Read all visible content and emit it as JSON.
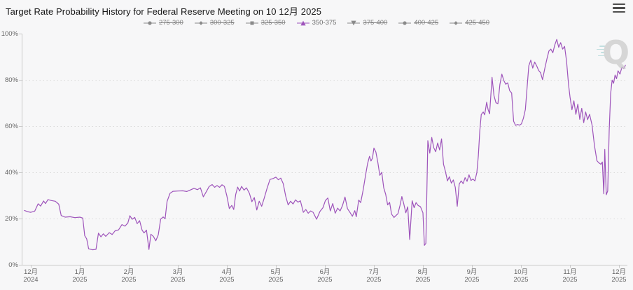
{
  "title": "Target Rate Probability History for Federal Reserve Meeting on 10 12月 2025",
  "watermark": {
    "letter": "Q"
  },
  "colors": {
    "background": "#f7f7f8",
    "accent": "#9e54bb",
    "legend_disabled": "#8a8a8a",
    "axis": "#c9c9c9",
    "grid": "#d9d9d9",
    "tick_text": "#666666",
    "title_text": "#161616"
  },
  "legend": {
    "items": [
      {
        "label": "275-300",
        "marker": "circle",
        "active": false
      },
      {
        "label": "300-325",
        "marker": "diamond",
        "active": false
      },
      {
        "label": "325-350",
        "marker": "square",
        "active": false
      },
      {
        "label": "350-375",
        "marker": "triangle-up",
        "active": true
      },
      {
        "label": "375-400",
        "marker": "triangle-down",
        "active": false
      },
      {
        "label": "400-425",
        "marker": "circle",
        "active": false
      },
      {
        "label": "425-450",
        "marker": "diamond",
        "active": false
      }
    ]
  },
  "chart_data": {
    "type": "line",
    "title": "Target Rate Probability History for Federal Reserve Meeting on 10 12月 2025",
    "xlabel": "",
    "ylabel": "",
    "ylim": [
      0,
      100
    ],
    "grid": "dotted-horizontal",
    "legend_position": "top-center",
    "y_ticks": [
      "0%",
      "20%",
      "40%",
      "60%",
      "80%",
      "100%"
    ],
    "x_ticks": [
      {
        "month": "12月",
        "year": "2024"
      },
      {
        "month": "1月",
        "year": "2025"
      },
      {
        "month": "2月",
        "year": "2025"
      },
      {
        "month": "3月",
        "year": "2025"
      },
      {
        "month": "4月",
        "year": "2025"
      },
      {
        "month": "5月",
        "year": "2025"
      },
      {
        "month": "6月",
        "year": "2025"
      },
      {
        "month": "7月",
        "year": "2025"
      },
      {
        "month": "8月",
        "year": "2025"
      },
      {
        "month": "9月",
        "year": "2025"
      },
      {
        "month": "10月",
        "year": "2025"
      },
      {
        "month": "11月",
        "year": "2025"
      },
      {
        "month": "12月",
        "year": "2025"
      }
    ],
    "hidden_series": [
      "275-300",
      "300-325",
      "325-350",
      "375-400",
      "400-425",
      "425-450"
    ],
    "series": [
      {
        "name": "350-375",
        "color": "#9e54bb",
        "unit": "%",
        "x_unit": "months-from-2024-12",
        "points": [
          [
            -0.13,
            23.5
          ],
          [
            -0.07,
            23.0
          ],
          [
            0,
            22.7
          ],
          [
            0.08,
            23.2
          ],
          [
            0.15,
            26.4
          ],
          [
            0.2,
            25.4
          ],
          [
            0.26,
            27.6
          ],
          [
            0.3,
            26.5
          ],
          [
            0.35,
            28.2
          ],
          [
            0.42,
            27.8
          ],
          [
            0.5,
            27.5
          ],
          [
            0.57,
            26.2
          ],
          [
            0.62,
            21.3
          ],
          [
            0.7,
            20.6
          ],
          [
            0.8,
            20.8
          ],
          [
            0.9,
            20.4
          ],
          [
            1.0,
            20.6
          ],
          [
            1.06,
            20.2
          ],
          [
            1.1,
            12.6
          ],
          [
            1.14,
            11.2
          ],
          [
            1.18,
            6.9
          ],
          [
            1.26,
            6.5
          ],
          [
            1.33,
            6.7
          ],
          [
            1.38,
            13.7
          ],
          [
            1.43,
            12.1
          ],
          [
            1.48,
            13.4
          ],
          [
            1.53,
            12.3
          ],
          [
            1.6,
            13.9
          ],
          [
            1.66,
            13.1
          ],
          [
            1.72,
            14.7
          ],
          [
            1.79,
            15.1
          ],
          [
            1.86,
            17.4
          ],
          [
            1.92,
            16.7
          ],
          [
            1.98,
            18.1
          ],
          [
            2.02,
            21.2
          ],
          [
            2.07,
            19.7
          ],
          [
            2.12,
            20.5
          ],
          [
            2.17,
            17.8
          ],
          [
            2.22,
            19.1
          ],
          [
            2.27,
            15.0
          ],
          [
            2.31,
            13.8
          ],
          [
            2.36,
            15.0
          ],
          [
            2.41,
            6.6
          ],
          [
            2.45,
            13.2
          ],
          [
            2.5,
            12.3
          ],
          [
            2.55,
            10.4
          ],
          [
            2.6,
            12.9
          ],
          [
            2.65,
            19.8
          ],
          [
            2.7,
            20.7
          ],
          [
            2.74,
            19.9
          ],
          [
            2.78,
            27.4
          ],
          [
            2.84,
            30.9
          ],
          [
            2.9,
            31.8
          ],
          [
            3.0,
            31.9
          ],
          [
            3.1,
            32.0
          ],
          [
            3.18,
            31.7
          ],
          [
            3.26,
            32.4
          ],
          [
            3.33,
            33.1
          ],
          [
            3.4,
            32.5
          ],
          [
            3.46,
            33.3
          ],
          [
            3.52,
            29.4
          ],
          [
            3.58,
            31.6
          ],
          [
            3.64,
            33.9
          ],
          [
            3.7,
            34.7
          ],
          [
            3.75,
            33.5
          ],
          [
            3.8,
            34.3
          ],
          [
            3.85,
            33.5
          ],
          [
            3.9,
            34.6
          ],
          [
            3.95,
            33.9
          ],
          [
            4.0,
            29.8
          ],
          [
            4.05,
            24.3
          ],
          [
            4.1,
            25.7
          ],
          [
            4.14,
            23.9
          ],
          [
            4.18,
            30.4
          ],
          [
            4.22,
            33.6
          ],
          [
            4.26,
            31.9
          ],
          [
            4.3,
            33.9
          ],
          [
            4.35,
            32.3
          ],
          [
            4.4,
            33.3
          ],
          [
            4.46,
            30.9
          ],
          [
            4.51,
            27.3
          ],
          [
            4.56,
            29.1
          ],
          [
            4.61,
            23.7
          ],
          [
            4.66,
            27.5
          ],
          [
            4.71,
            25.3
          ],
          [
            4.76,
            28.7
          ],
          [
            4.82,
            33.1
          ],
          [
            4.88,
            36.9
          ],
          [
            4.94,
            37.3
          ],
          [
            5.0,
            37.9
          ],
          [
            5.05,
            36.8
          ],
          [
            5.1,
            37.5
          ],
          [
            5.15,
            35.1
          ],
          [
            5.2,
            29.7
          ],
          [
            5.25,
            25.9
          ],
          [
            5.3,
            27.5
          ],
          [
            5.35,
            26.3
          ],
          [
            5.4,
            28.1
          ],
          [
            5.45,
            27.1
          ],
          [
            5.5,
            27.7
          ],
          [
            5.56,
            22.7
          ],
          [
            5.61,
            23.9
          ],
          [
            5.66,
            22.3
          ],
          [
            5.71,
            23.3
          ],
          [
            5.76,
            22.7
          ],
          [
            5.83,
            19.7
          ],
          [
            5.9,
            23.1
          ],
          [
            5.96,
            24.7
          ],
          [
            6.01,
            27.8
          ],
          [
            6.06,
            28.9
          ],
          [
            6.11,
            23.3
          ],
          [
            6.16,
            26.5
          ],
          [
            6.21,
            22.3
          ],
          [
            6.26,
            24.5
          ],
          [
            6.31,
            23.3
          ],
          [
            6.36,
            25.7
          ],
          [
            6.41,
            29.3
          ],
          [
            6.46,
            24.3
          ],
          [
            6.51,
            22.7
          ],
          [
            6.56,
            21.0
          ],
          [
            6.61,
            23.4
          ],
          [
            6.64,
            20.8
          ],
          [
            6.69,
            28.0
          ],
          [
            6.73,
            26.9
          ],
          [
            6.78,
            32.3
          ],
          [
            6.83,
            38.8
          ],
          [
            6.87,
            43.7
          ],
          [
            6.91,
            46.9
          ],
          [
            6.94,
            44.9
          ],
          [
            6.97,
            46.1
          ],
          [
            7.0,
            50.5
          ],
          [
            7.04,
            48.8
          ],
          [
            7.08,
            44.3
          ],
          [
            7.12,
            38.7
          ],
          [
            7.16,
            40.0
          ],
          [
            7.2,
            33.3
          ],
          [
            7.24,
            30.5
          ],
          [
            7.28,
            25.9
          ],
          [
            7.32,
            27.0
          ],
          [
            7.36,
            21.9
          ],
          [
            7.41,
            20.5
          ],
          [
            7.45,
            21.3
          ],
          [
            7.49,
            22.1
          ],
          [
            7.53,
            25.5
          ],
          [
            7.57,
            29.5
          ],
          [
            7.61,
            26.3
          ],
          [
            7.65,
            22.5
          ],
          [
            7.69,
            25.1
          ],
          [
            7.73,
            10.9
          ],
          [
            7.78,
            27.7
          ],
          [
            7.82,
            24.7
          ],
          [
            7.86,
            26.9
          ],
          [
            7.9,
            25.7
          ],
          [
            7.95,
            25.1
          ],
          [
            8.0,
            22.5
          ],
          [
            8.03,
            8.4
          ],
          [
            8.06,
            9.3
          ],
          [
            8.1,
            53.7
          ],
          [
            8.14,
            48.3
          ],
          [
            8.18,
            55.1
          ],
          [
            8.22,
            50.7
          ],
          [
            8.26,
            48.9
          ],
          [
            8.3,
            52.7
          ],
          [
            8.34,
            49.7
          ],
          [
            8.38,
            54.5
          ],
          [
            8.42,
            43.5
          ],
          [
            8.46,
            40.3
          ],
          [
            8.5,
            36.3
          ],
          [
            8.54,
            38.1
          ],
          [
            8.58,
            35.3
          ],
          [
            8.62,
            36.7
          ],
          [
            8.66,
            33.5
          ],
          [
            8.7,
            25.3
          ],
          [
            8.74,
            34.9
          ],
          [
            8.78,
            36.3
          ],
          [
            8.82,
            35.1
          ],
          [
            8.86,
            37.7
          ],
          [
            8.9,
            36.1
          ],
          [
            8.94,
            38.9
          ],
          [
            8.98,
            36.5
          ],
          [
            9.02,
            37.1
          ],
          [
            9.06,
            36.3
          ],
          [
            9.1,
            39.9
          ],
          [
            9.13,
            47.1
          ],
          [
            9.16,
            57.9
          ],
          [
            9.19,
            65.0
          ],
          [
            9.23,
            66.1
          ],
          [
            9.26,
            64.9
          ],
          [
            9.3,
            70.3
          ],
          [
            9.33,
            67.1
          ],
          [
            9.36,
            65.3
          ],
          [
            9.41,
            81.1
          ],
          [
            9.45,
            73.1
          ],
          [
            9.49,
            70.1
          ],
          [
            9.53,
            69.7
          ],
          [
            9.57,
            78.0
          ],
          [
            9.61,
            82.5
          ],
          [
            9.65,
            79.7
          ],
          [
            9.69,
            78.1
          ],
          [
            9.73,
            78.7
          ],
          [
            9.77,
            75.3
          ],
          [
            9.81,
            74.3
          ],
          [
            9.85,
            62.1
          ],
          [
            9.89,
            60.3
          ],
          [
            9.93,
            60.7
          ],
          [
            9.97,
            60.4
          ],
          [
            10.01,
            61.0
          ],
          [
            10.05,
            63.4
          ],
          [
            10.09,
            67.2
          ],
          [
            10.13,
            78.1
          ],
          [
            10.16,
            86.1
          ],
          [
            10.2,
            88.5
          ],
          [
            10.24,
            85.1
          ],
          [
            10.28,
            87.7
          ],
          [
            10.32,
            86.1
          ],
          [
            10.36,
            84.1
          ],
          [
            10.4,
            83.1
          ],
          [
            10.44,
            80.1
          ],
          [
            10.49,
            85.3
          ],
          [
            10.53,
            89.1
          ],
          [
            10.57,
            92.5
          ],
          [
            10.61,
            93.3
          ],
          [
            10.65,
            91.7
          ],
          [
            10.69,
            95.1
          ],
          [
            10.73,
            97.5
          ],
          [
            10.77,
            94.1
          ],
          [
            10.81,
            96.1
          ],
          [
            10.85,
            93.3
          ],
          [
            10.89,
            94.5
          ],
          [
            10.93,
            88.1
          ],
          [
            10.97,
            78.1
          ],
          [
            11.0,
            72.7
          ],
          [
            11.04,
            67.1
          ],
          [
            11.08,
            70.9
          ],
          [
            11.12,
            65.1
          ],
          [
            11.16,
            69.5
          ],
          [
            11.2,
            62.9
          ],
          [
            11.24,
            67.7
          ],
          [
            11.28,
            61.5
          ],
          [
            11.32,
            66.1
          ],
          [
            11.36,
            62.8
          ],
          [
            11.4,
            65.1
          ],
          [
            11.45,
            60.5
          ],
          [
            11.5,
            51.5
          ],
          [
            11.55,
            45.0
          ],
          [
            11.59,
            44.1
          ],
          [
            11.63,
            43.5
          ],
          [
            11.66,
            44.5
          ],
          [
            11.69,
            30.7
          ],
          [
            11.71,
            49.9
          ],
          [
            11.74,
            30.3
          ],
          [
            11.77,
            31.9
          ],
          [
            11.8,
            58.1
          ],
          [
            11.83,
            74.1
          ],
          [
            11.86,
            79.9
          ],
          [
            11.89,
            78.5
          ],
          [
            11.92,
            82.1
          ],
          [
            11.95,
            80.5
          ],
          [
            11.98,
            83.9
          ],
          [
            12.02,
            82.5
          ],
          [
            12.06,
            85.5
          ],
          [
            12.1,
            84.9
          ],
          [
            12.13,
            86.3
          ]
        ]
      }
    ]
  }
}
